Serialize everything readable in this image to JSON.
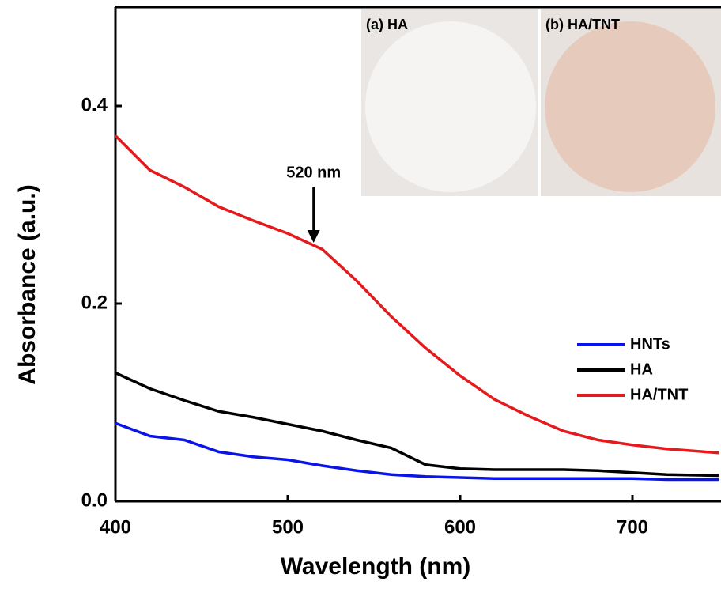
{
  "chart_data": {
    "type": "line",
    "x_label": "Wavelength (nm)",
    "y_label": "Absorbance (a.u.)",
    "xlim": [
      400,
      750
    ],
    "ylim": [
      0,
      0.5
    ],
    "xticks": [
      400,
      500,
      600,
      700
    ],
    "yticks": [
      {
        "value": 0,
        "label": "0.0"
      },
      0.2,
      0.4
    ],
    "x": [
      400,
      420,
      440,
      460,
      480,
      500,
      520,
      540,
      560,
      580,
      600,
      620,
      640,
      660,
      680,
      700,
      720,
      750
    ],
    "series": [
      {
        "name": "HNTs",
        "color": "#0a14e6",
        "values": [
          0.079,
          0.066,
          0.062,
          0.05,
          0.045,
          0.042,
          0.036,
          0.031,
          0.027,
          0.025,
          0.024,
          0.023,
          0.023,
          0.023,
          0.023,
          0.023,
          0.022,
          0.022
        ]
      },
      {
        "name": "HA",
        "color": "#000000",
        "values": [
          0.13,
          0.114,
          0.102,
          0.091,
          0.085,
          0.078,
          0.071,
          0.062,
          0.054,
          0.037,
          0.033,
          0.032,
          0.032,
          0.032,
          0.031,
          0.029,
          0.027,
          0.026
        ]
      },
      {
        "name": "HA/TNT",
        "color": "#e41a1c",
        "values": [
          0.37,
          0.335,
          0.318,
          0.298,
          0.284,
          0.271,
          0.255,
          0.223,
          0.187,
          0.155,
          0.127,
          0.103,
          0.086,
          0.071,
          0.062,
          0.057,
          0.053,
          0.049
        ]
      }
    ],
    "annotations": [
      {
        "text": "520 nm",
        "x": 515,
        "y": 0.26
      }
    ],
    "inset_labels": [
      "(a) HA",
      "(b) HA/TNT"
    ]
  }
}
